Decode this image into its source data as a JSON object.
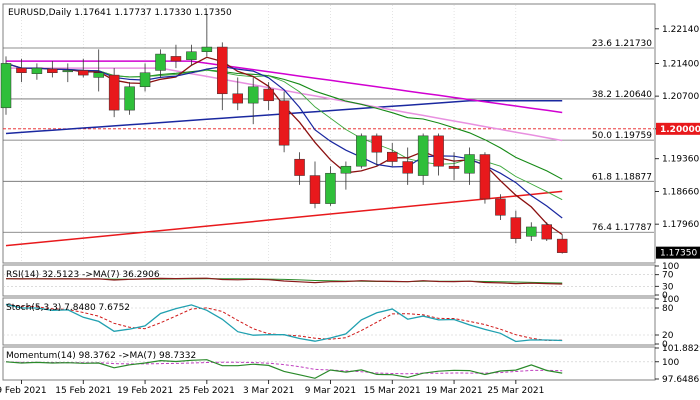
{
  "colors": {
    "bull": "#2fbf3a",
    "bear": "#e8191c",
    "grid": "#c8c8c8",
    "frame": "#808080",
    "fib_line": "#6a6a6a",
    "ma_long": "#e8191c",
    "ma_blue": "#1a28a0",
    "ma_magenta": "#d100d1",
    "ma_pink": "#e890e0",
    "ma_green": "#168a16",
    "ma_brown": "#8b1010",
    "ma_lightgreen": "#3ca83c",
    "price_box": "#000000",
    "level_box": "#e8191c",
    "rsi_line": "#8b1a1a",
    "rsi_ma": "#2a8a2a",
    "stoch_main": "#20a0b0",
    "stoch_signal": "#d01818",
    "mom_line": "#2a8a2a",
    "mom_ma": "#c040c0"
  },
  "header": {
    "main": "EURUSD,Daily  1.17641 1.17737 1.17330 1.17350",
    "rsi": "RSI(14) 32.5123  ->MA(7) 36.2906",
    "stoch": "Stoch(5,3,3) 7.8480 7.6752",
    "mom": "Momentum(14) 98.3762  ->MA(7) 98.7332"
  },
  "price_axis": {
    "ticks": [
      "1.22140",
      "1.21400",
      "1.20700",
      "1.20000",
      "1.19360",
      "1.18660",
      "1.17960"
    ],
    "current": "1.17350",
    "level": "1.20000"
  },
  "fib_labels": [
    "23.6 1.21730",
    "38.2 1.20640",
    "50.0 1.19759",
    "61.8 1.18877",
    "76.4 1.17787"
  ],
  "rsi_axis": [
    "100",
    "70",
    "30",
    "0"
  ],
  "stoch_axis": [
    "100",
    "80",
    "20",
    "0"
  ],
  "mom_axis": [
    "101.8829",
    "100",
    "97.6486"
  ],
  "date_labels": [
    "9 Feb 2021",
    "15 Feb 2021",
    "19 Feb 2021",
    "25 Feb 2021",
    "3 Mar 2021",
    "9 Mar 2021",
    "15 Mar 2021",
    "19 Mar 2021",
    "25 Mar 2021"
  ],
  "chart_data": {
    "type": "candlestick",
    "symbol": "EURUSD",
    "timeframe": "Daily",
    "ylim": [
      1.1715,
      1.2265
    ],
    "dates": [
      "8 Feb",
      "9 Feb",
      "10 Feb",
      "11 Feb",
      "12 Feb",
      "15 Feb",
      "16 Feb",
      "17 Feb",
      "18 Feb",
      "19 Feb",
      "22 Feb",
      "23 Feb",
      "24 Feb",
      "25 Feb",
      "26 Feb",
      "1 Mar",
      "2 Mar",
      "3 Mar",
      "4 Mar",
      "5 Mar",
      "8 Mar",
      "9 Mar",
      "10 Mar",
      "11 Mar",
      "12 Mar",
      "15 Mar",
      "16 Mar",
      "17 Mar",
      "18 Mar",
      "19 Mar",
      "22 Mar",
      "23 Mar",
      "24 Mar",
      "25 Mar",
      "26 Mar",
      "29 Mar",
      "30 Mar"
    ],
    "ohlc": [
      [
        1.2045,
        1.2155,
        1.203,
        1.214
      ],
      [
        1.213,
        1.215,
        1.21,
        1.212
      ],
      [
        1.2118,
        1.214,
        1.2105,
        1.213
      ],
      [
        1.2128,
        1.2145,
        1.211,
        1.212
      ],
      [
        1.2122,
        1.214,
        1.21,
        1.2125
      ],
      [
        1.2125,
        1.215,
        1.211,
        1.2115
      ],
      [
        1.211,
        1.217,
        1.208,
        1.212
      ],
      [
        1.2115,
        1.213,
        1.2025,
        1.204
      ],
      [
        1.204,
        1.21,
        1.203,
        1.209
      ],
      [
        1.209,
        1.214,
        1.208,
        1.212
      ],
      [
        1.2125,
        1.217,
        1.211,
        1.216
      ],
      [
        1.2155,
        1.218,
        1.213,
        1.2145
      ],
      [
        1.2148,
        1.218,
        1.2135,
        1.2165
      ],
      [
        1.2165,
        1.2245,
        1.2155,
        1.2175
      ],
      [
        1.2175,
        1.2185,
        1.204,
        1.2075
      ],
      [
        1.2075,
        1.211,
        1.204,
        1.2055
      ],
      [
        1.2055,
        1.211,
        1.201,
        1.209
      ],
      [
        1.2085,
        1.21,
        1.204,
        1.206
      ],
      [
        1.206,
        1.208,
        1.195,
        1.1965
      ],
      [
        1.1935,
        1.195,
        1.188,
        1.19
      ],
      [
        1.19,
        1.193,
        1.183,
        1.184
      ],
      [
        1.184,
        1.192,
        1.1835,
        1.1905
      ],
      [
        1.1905,
        1.193,
        1.187,
        1.192
      ],
      [
        1.192,
        1.199,
        1.1915,
        1.1985
      ],
      [
        1.1985,
        1.199,
        1.192,
        1.195
      ],
      [
        1.195,
        1.197,
        1.192,
        1.193
      ],
      [
        1.193,
        1.196,
        1.188,
        1.1905
      ],
      [
        1.19,
        1.199,
        1.188,
        1.1985
      ],
      [
        1.1985,
        1.199,
        1.19,
        1.192
      ],
      [
        1.192,
        1.195,
        1.189,
        1.1915
      ],
      [
        1.1905,
        1.196,
        1.188,
        1.1945
      ],
      [
        1.1945,
        1.195,
        1.184,
        1.185
      ],
      [
        1.185,
        1.186,
        1.1805,
        1.1815
      ],
      [
        1.181,
        1.1825,
        1.1755,
        1.1765
      ],
      [
        1.177,
        1.18,
        1.176,
        1.179
      ],
      [
        1.1795,
        1.18,
        1.176,
        1.1764
      ],
      [
        1.1764,
        1.1774,
        1.1733,
        1.1735
      ]
    ],
    "fib_levels": [
      1.2173,
      1.2064,
      1.19759,
      1.18877,
      1.17787
    ],
    "horizontal_level": 1.2,
    "current_price": 1.1735,
    "rsi": {
      "period": 14,
      "value": 32.5123,
      "ma_period": 7,
      "ma_value": 36.2906,
      "ylim": [
        0,
        100
      ]
    },
    "stoch": {
      "params": "5,3,3",
      "main": 7.848,
      "signal": 7.6752,
      "ylim": [
        0,
        100
      ]
    },
    "momentum": {
      "period": 14,
      "value": 98.3762,
      "ma_period": 7,
      "ma_value": 98.7332,
      "ylim": [
        97.6486,
        101.8829
      ]
    }
  }
}
